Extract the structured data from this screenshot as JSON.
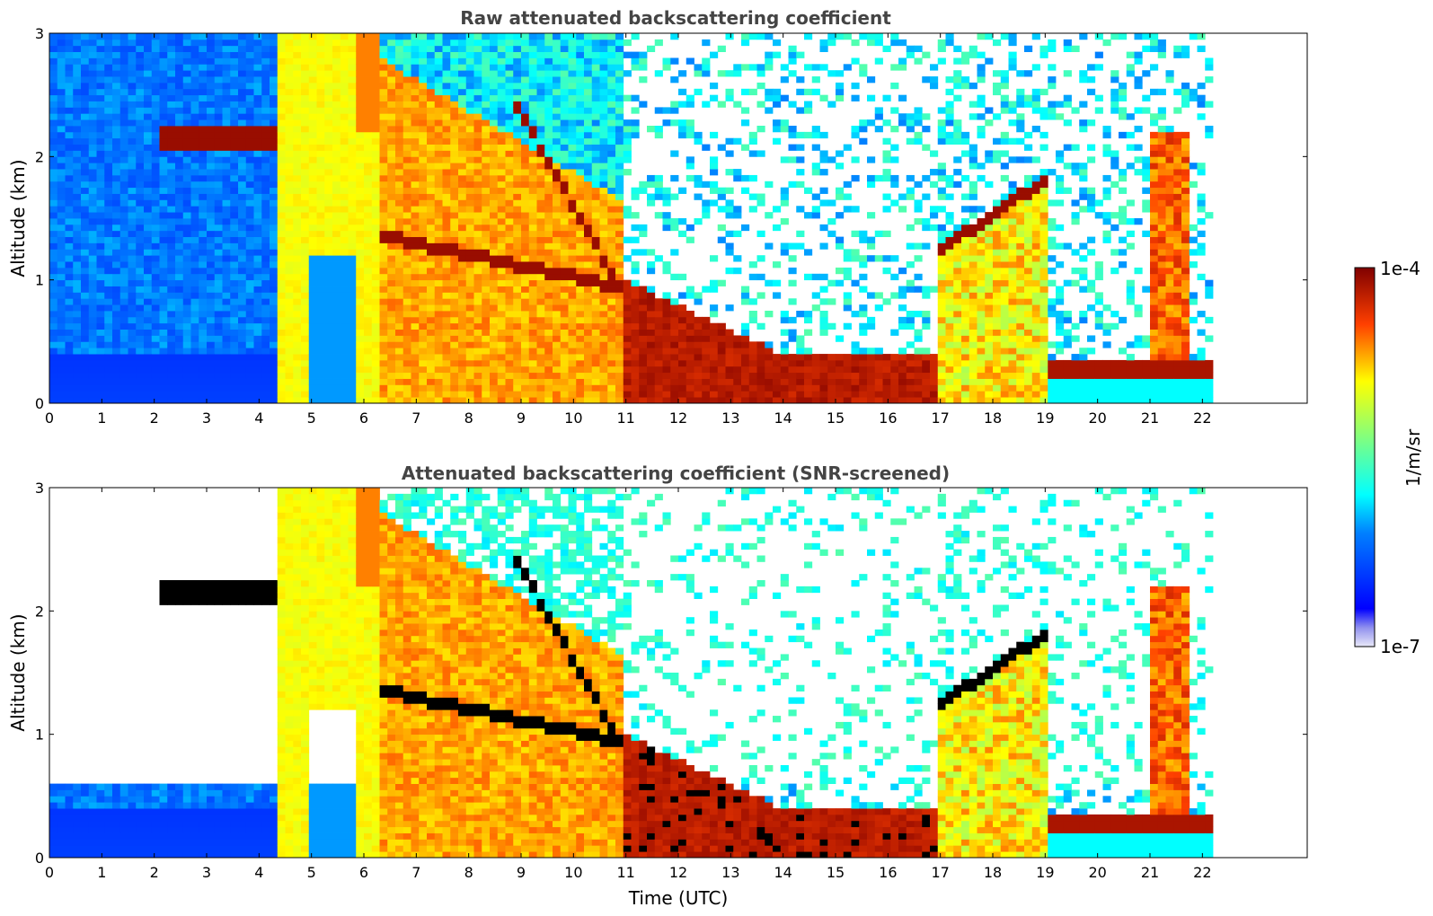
{
  "chart_data": [
    {
      "type": "heatmap",
      "title": "Raw attenuated backscattering coefficient",
      "xlabel": "",
      "ylabel": "Altitude (km)",
      "xlim": [
        0,
        24
      ],
      "ylim": [
        0,
        3
      ],
      "xticks": [
        "0",
        "1",
        "2",
        "3",
        "4",
        "5",
        "6",
        "7",
        "8",
        "9",
        "10",
        "11",
        "12",
        "13",
        "14",
        "15",
        "16",
        "17",
        "18",
        "19",
        "20",
        "21",
        "22"
      ],
      "yticks": [
        "0",
        "1",
        "2",
        "3"
      ],
      "data_end_hour": 22.2,
      "colormap": "jet",
      "color_scale": "log",
      "clim": [
        "1e-7",
        "1e-4"
      ],
      "layers": [
        {
          "feature": "near-surface boundary layer",
          "start_hour": 0,
          "end_hour": 4.3,
          "top_km": 0.4,
          "level": 0.2
        },
        {
          "feature": "elevated thin layer",
          "start_hour": 2.1,
          "end_hour": 4.2,
          "base_km": 2.05,
          "top_km": 2.25,
          "level": 0.97
        },
        {
          "feature": "thick aerosol/cloud column",
          "start_hour": 4.3,
          "end_hour": 6.3,
          "base_km": 0,
          "top_km": 3.0,
          "level": 0.72
        },
        {
          "feature": "cloud layer descending",
          "start_hour": 6.4,
          "end_hour": 11.0,
          "base_km": 1.4,
          "top_km": 0.9,
          "level": 0.97
        },
        {
          "feature": "cloud layer descending",
          "start_hour": 8.8,
          "end_hour": 10.8,
          "base_km": 2.5,
          "top_km": 1.0,
          "level": 0.97
        },
        {
          "feature": "low dense layer",
          "start_hour": 11.0,
          "end_hour": 17.0,
          "base_km": 0,
          "top_km": 0.4,
          "level": 0.95
        },
        {
          "feature": "rising cloud layer",
          "start_hour": 17.0,
          "end_hour": 18.9,
          "base_km": 1.2,
          "top_km": 1.75,
          "level": 0.97
        },
        {
          "feature": "low cloud layer",
          "start_hour": 19.0,
          "end_hour": 22.2,
          "base_km": 0.2,
          "top_km": 0.35,
          "level": 0.95
        },
        {
          "feature": "vertical column",
          "start_hour": 21.0,
          "end_hour": 21.7,
          "base_km": 0,
          "top_km": 2.3,
          "level": 0.8
        }
      ]
    },
    {
      "type": "heatmap",
      "title": "Attenuated backscattering coefficient (SNR-screened)",
      "xlabel": "Time (UTC)",
      "ylabel": "Altitude (km)",
      "xlim": [
        0,
        24
      ],
      "ylim": [
        0,
        3
      ],
      "xticks": [
        "0",
        "1",
        "2",
        "3",
        "4",
        "5",
        "6",
        "7",
        "8",
        "9",
        "10",
        "11",
        "12",
        "13",
        "14",
        "15",
        "16",
        "17",
        "18",
        "19",
        "20",
        "21",
        "22"
      ],
      "yticks": [
        "0",
        "1",
        "2",
        "3"
      ],
      "data_end_hour": 22.2,
      "colormap": "jet",
      "color_scale": "log",
      "clim": [
        "1e-7",
        "1e-4"
      ],
      "screened_value_color": "#000000"
    }
  ],
  "colorbar": {
    "label": "1/m/sr",
    "max_label": "1e-4",
    "min_label": "1e-7"
  }
}
